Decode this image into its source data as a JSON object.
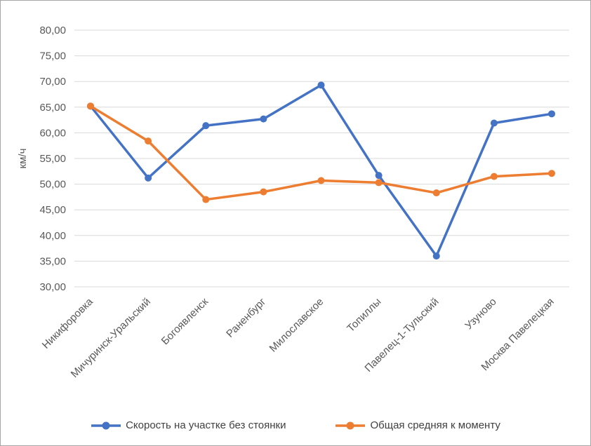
{
  "chart_data": {
    "type": "line",
    "title": "",
    "xlabel": "",
    "ylabel": "км/ч",
    "ylim": [
      30,
      80
    ],
    "ytick_step": 5,
    "ytick_labels": [
      "30,00",
      "35,00",
      "40,00",
      "45,00",
      "50,00",
      "55,00",
      "60,00",
      "65,00",
      "70,00",
      "75,00",
      "80,00"
    ],
    "categories": [
      "Никифоровка",
      "Мичуринск-Уральский",
      "Богоявленск",
      "Раненбург",
      "Милославское",
      "Топиллы",
      "Павелец-1-Тульский",
      "Узуново",
      "Москва Павелецкая"
    ],
    "series": [
      {
        "name": "Скорость на участке без стоянки",
        "color": "#4472C4",
        "values": [
          65.2,
          51.2,
          61.4,
          62.7,
          69.3,
          51.7,
          36.0,
          61.9,
          63.7
        ]
      },
      {
        "name": "Общая средняя к моменту",
        "color": "#ED7D31",
        "values": [
          65.2,
          58.4,
          47.0,
          48.5,
          50.7,
          50.3,
          48.3,
          51.5,
          52.1
        ]
      }
    ],
    "grid": "horizontal",
    "legend_position": "bottom"
  },
  "colors": {
    "grid": "#D9D9D9",
    "axis_text": "#595959",
    "legend_text": "#404040",
    "background": "#FFFFFF"
  }
}
